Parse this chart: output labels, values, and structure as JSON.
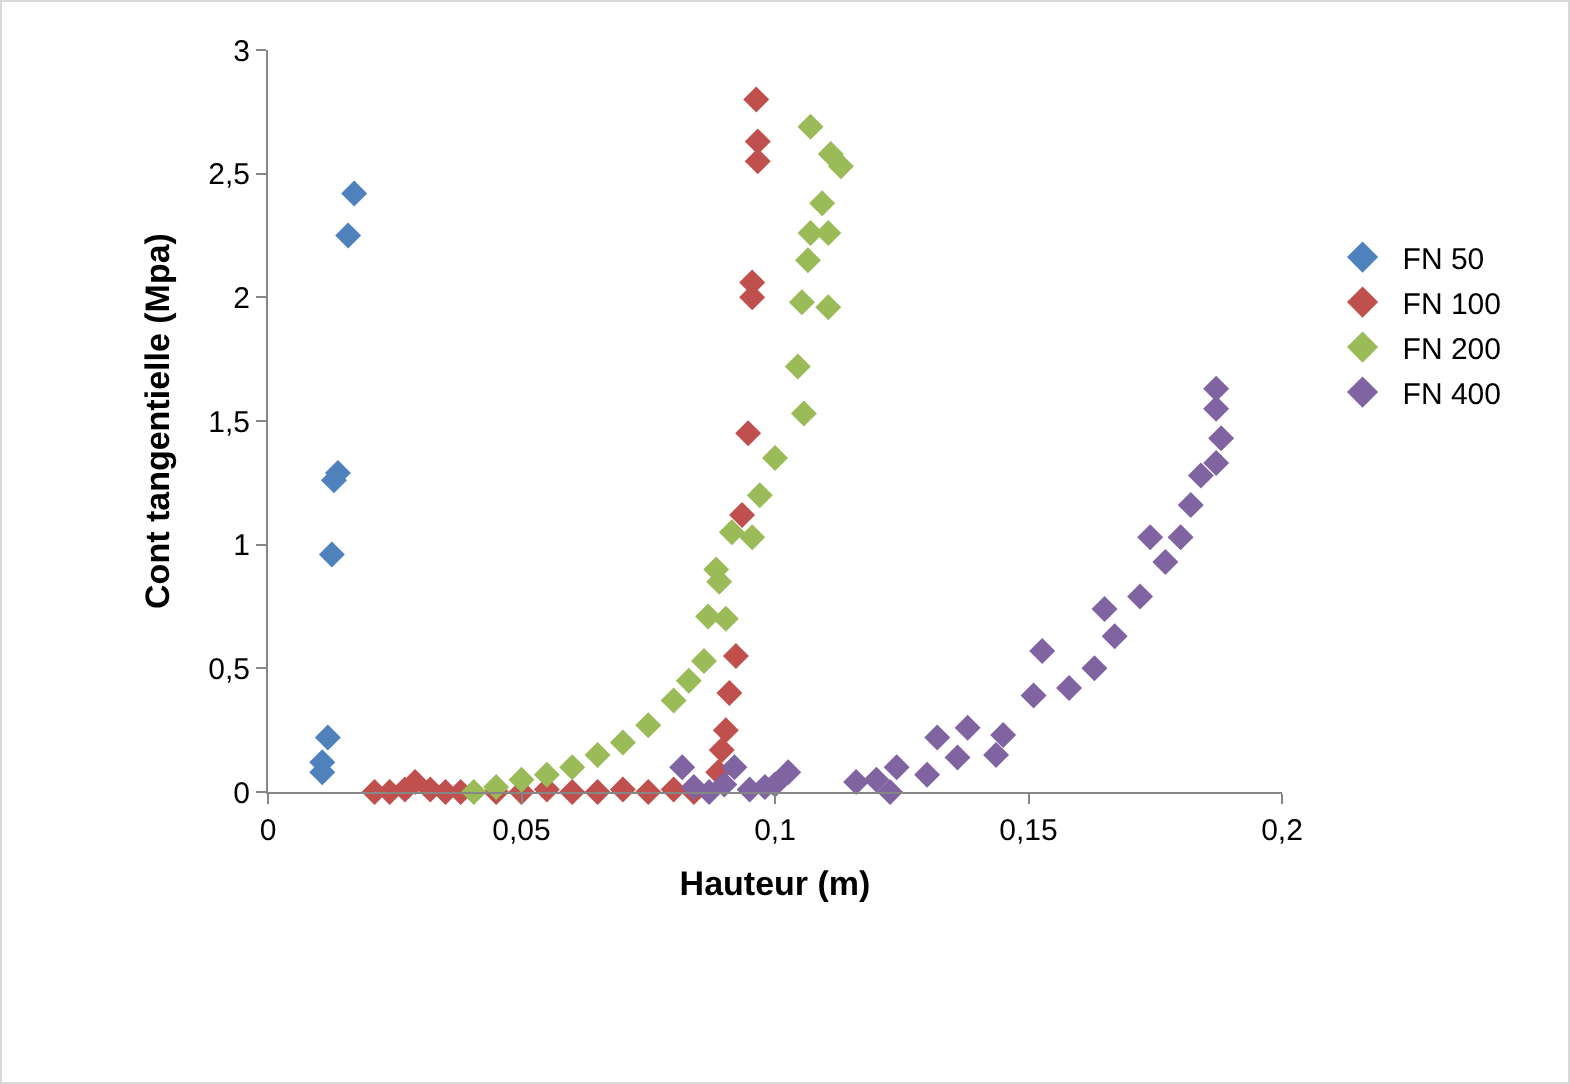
{
  "chart_data": {
    "type": "scatter",
    "xlabel": "Hauteur (m)",
    "ylabel": "Cont tangentielle (Mpa)",
    "xlim": [
      0,
      0.2
    ],
    "ylim": [
      0,
      3
    ],
    "xticks": [
      {
        "value": 0,
        "label": "0"
      },
      {
        "value": 0.05,
        "label": "0,05"
      },
      {
        "value": 0.1,
        "label": "0,1"
      },
      {
        "value": 0.15,
        "label": "0,15"
      },
      {
        "value": 0.2,
        "label": "0,2"
      }
    ],
    "yticks": [
      {
        "value": 0,
        "label": "0"
      },
      {
        "value": 0.5,
        "label": "0,5"
      },
      {
        "value": 1,
        "label": "1"
      },
      {
        "value": 1.5,
        "label": "1,5"
      },
      {
        "value": 2,
        "label": "2"
      },
      {
        "value": 2.5,
        "label": "2,5"
      },
      {
        "value": 3,
        "label": "3"
      }
    ],
    "grid": false,
    "legend": "right",
    "marker": "diamond",
    "series": [
      {
        "name": "FN 50",
        "color": "#4f81bd",
        "x": [
          0.017,
          0.0158,
          0.0138,
          0.013,
          0.0126,
          0.0118,
          0.0107,
          0.0107
        ],
        "values": [
          2.42,
          2.25,
          1.29,
          1.26,
          0.96,
          0.22,
          0.12,
          0.08
        ]
      },
      {
        "name": "FN 100",
        "color": "#c0504d",
        "x": [
          0.021,
          0.024,
          0.027,
          0.029,
          0.032,
          0.035,
          0.038,
          0.045,
          0.05,
          0.055,
          0.06,
          0.065,
          0.07,
          0.075,
          0.08,
          0.084,
          0.0888,
          0.0895,
          0.0903,
          0.091,
          0.0923,
          0.0935,
          0.0947,
          0.0955,
          0.0955,
          0.0963,
          0.0966,
          0.0966
        ],
        "values": [
          0,
          0,
          0.01,
          0.04,
          0.01,
          0,
          0,
          0,
          0,
          0.01,
          0,
          0,
          0.01,
          0,
          0.01,
          0,
          0.08,
          0.17,
          0.25,
          0.4,
          0.55,
          1.12,
          1.45,
          2.0,
          2.06,
          2.8,
          2.63,
          2.55
        ]
      },
      {
        "name": "FN 200",
        "color": "#9bbb59",
        "x": [
          0.0406,
          0.045,
          0.05,
          0.055,
          0.06,
          0.065,
          0.07,
          0.075,
          0.08,
          0.083,
          0.086,
          0.0868,
          0.0903,
          0.0884,
          0.089,
          0.0915,
          0.0955,
          0.097,
          0.1,
          0.1045,
          0.1057,
          0.1053,
          0.1105,
          0.1065,
          0.107,
          0.1105,
          0.1093,
          0.113,
          0.111,
          0.107
        ],
        "values": [
          0,
          0.02,
          0.05,
          0.07,
          0.1,
          0.15,
          0.2,
          0.27,
          0.37,
          0.45,
          0.53,
          0.71,
          0.7,
          0.9,
          0.85,
          1.05,
          1.03,
          1.2,
          1.35,
          1.72,
          1.53,
          1.98,
          1.96,
          2.15,
          2.26,
          2.26,
          2.38,
          2.53,
          2.58,
          2.69
        ]
      },
      {
        "name": "FN 400",
        "color": "#8064a2",
        "x": [
          0.0817,
          0.084,
          0.087,
          0.09,
          0.092,
          0.095,
          0.098,
          0.1,
          0.1026,
          0.116,
          0.12,
          0.1227,
          0.124,
          0.13,
          0.132,
          0.136,
          0.138,
          0.1436,
          0.145,
          0.151,
          0.1527,
          0.158,
          0.163,
          0.165,
          0.167,
          0.172,
          0.174,
          0.177,
          0.18,
          0.182,
          0.184,
          0.187,
          0.188,
          0.187,
          0.187
        ],
        "values": [
          0.1,
          0.02,
          0,
          0.03,
          0.1,
          0.01,
          0.02,
          0.03,
          0.08,
          0.04,
          0.05,
          0,
          0.1,
          0.07,
          0.22,
          0.14,
          0.26,
          0.15,
          0.23,
          0.39,
          0.57,
          0.42,
          0.5,
          0.74,
          0.63,
          0.79,
          1.03,
          0.93,
          1.03,
          1.16,
          1.28,
          1.33,
          1.43,
          1.55,
          1.63
        ]
      }
    ]
  }
}
